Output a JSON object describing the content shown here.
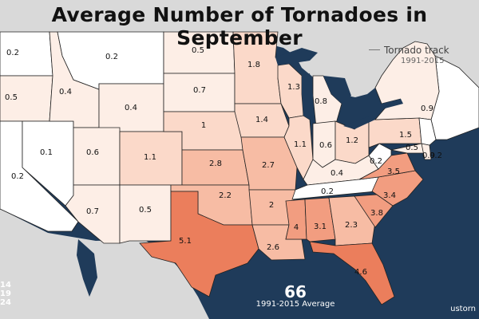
{
  "title": "Average Number of Tornadoes in September",
  "legend": {
    "track_label": "Tornado track",
    "track_years": "1991-2015"
  },
  "total": {
    "value": "66",
    "caption": "1991-2015 Average"
  },
  "side_values": [
    "14",
    "19",
    "24"
  ],
  "credit": "ustorn",
  "colors": {
    "ocean": "#1f3b5a",
    "land_foreign": "#d9d9d9",
    "lakes": "#1f3b5a",
    "scale": [
      "#ffffff",
      "#fdeee6",
      "#fbd9c9",
      "#f7bca4",
      "#f29d80",
      "#eb7e5c"
    ]
  },
  "states": [
    {
      "name": "WA",
      "value": "0.2"
    },
    {
      "name": "OR",
      "value": "0.5"
    },
    {
      "name": "CA",
      "value": "0.2"
    },
    {
      "name": "NV",
      "value": "0.1"
    },
    {
      "name": "ID",
      "value": "0.4"
    },
    {
      "name": "MT",
      "value": "0.2"
    },
    {
      "name": "WY",
      "value": "0.4"
    },
    {
      "name": "UT",
      "value": "0.6"
    },
    {
      "name": "AZ",
      "value": "0.7"
    },
    {
      "name": "CO",
      "value": "1.1"
    },
    {
      "name": "NM",
      "value": "0.5"
    },
    {
      "name": "ND",
      "value": "0.5"
    },
    {
      "name": "SD",
      "value": "0.7"
    },
    {
      "name": "NE",
      "value": "1"
    },
    {
      "name": "KS",
      "value": "2.8"
    },
    {
      "name": "OK",
      "value": "2.2"
    },
    {
      "name": "TX",
      "value": "5.1"
    },
    {
      "name": "MN",
      "value": "1.8"
    },
    {
      "name": "IA",
      "value": "1.4"
    },
    {
      "name": "MO",
      "value": "2.7"
    },
    {
      "name": "AR",
      "value": "2"
    },
    {
      "name": "LA",
      "value": "2.6"
    },
    {
      "name": "WI",
      "value": "1.3"
    },
    {
      "name": "IL",
      "value": "1.1"
    },
    {
      "name": "MI",
      "value": "0.8"
    },
    {
      "name": "IN",
      "value": "0.6"
    },
    {
      "name": "OH",
      "value": "1.2"
    },
    {
      "name": "KY",
      "value": "0.4"
    },
    {
      "name": "TN",
      "value": "0.2"
    },
    {
      "name": "MS",
      "value": "4"
    },
    {
      "name": "AL",
      "value": "3.1"
    },
    {
      "name": "GA",
      "value": "2.3"
    },
    {
      "name": "FL",
      "value": "4.6"
    },
    {
      "name": "SC",
      "value": "3.8"
    },
    {
      "name": "NC",
      "value": "3.4"
    },
    {
      "name": "VA",
      "value": "3.5"
    },
    {
      "name": "WV",
      "value": "0.2"
    },
    {
      "name": "PA",
      "value": "1.5"
    },
    {
      "name": "NY",
      "value": "0.9"
    },
    {
      "name": "MD",
      "value": "0.5"
    },
    {
      "name": "DE",
      "value": "0.9"
    },
    {
      "name": "NJ",
      "value": "0.2"
    }
  ]
}
